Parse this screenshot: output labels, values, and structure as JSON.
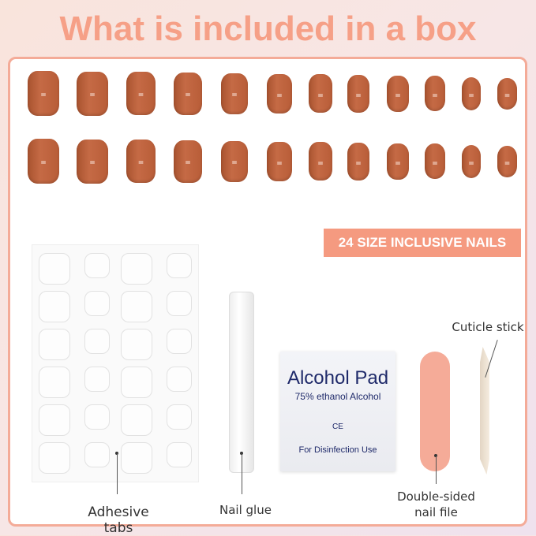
{
  "title": "What is included in a box",
  "badge": "24 SIZE INCLUSIVE NAILS",
  "nail_mark": "=",
  "nail_count": 24,
  "alcohol_pad": {
    "title": "Alcohol Pad",
    "subtitle": "75% ethanol Alcohol",
    "mark": "CE",
    "footer": "For Disinfection Use"
  },
  "labels": {
    "adhesive": "Adhesive tabs",
    "glue": "Nail glue",
    "file_line1": "Double-sided",
    "file_line2": "nail file",
    "stick": "Cuticle stick"
  },
  "colors": {
    "title": "#f6a087",
    "nail": "#b85d38",
    "badge": "#f59a80",
    "border": "#f4ab98",
    "file": "#f5ab98"
  }
}
